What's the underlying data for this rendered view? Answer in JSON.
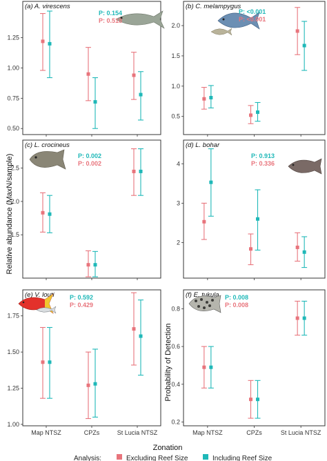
{
  "colors": {
    "excluding": "#E8747C",
    "including": "#1FB8B8"
  },
  "figure": {
    "xlabel": "Zonation",
    "ylabel_left": "Relative abundance (MaxN/sample)",
    "ylabel_right": "Probability of Detection",
    "legend_title": "Analysis:",
    "legend_items": [
      "Excluding Reef Size",
      "Including Reef Size"
    ],
    "categories": [
      "Map NTSZ",
      "CPZs",
      "St Lucia NTSZ"
    ]
  },
  "chart_data": [
    {
      "type": "scatter",
      "panel": "a",
      "title": "(a) A. virescens",
      "p_including": "P: 0.154",
      "p_excluding": "P: 0.518",
      "categories": [
        "Map NTSZ",
        "CPZs",
        "St Lucia NTSZ"
      ],
      "yticks": [
        "0.50",
        "0.75",
        "1.00",
        "1.25"
      ],
      "yticks_num": [
        0.5,
        0.75,
        1.0,
        1.25
      ],
      "ylim": [
        0.45,
        1.55
      ],
      "series": [
        {
          "values": [
            1.22,
            0.95,
            0.94
          ],
          "lower": [
            0.98,
            0.73,
            0.74
          ],
          "upper": [
            1.45,
            1.17,
            1.13
          ]
        },
        {
          "values": [
            1.2,
            0.72,
            0.78
          ],
          "lower": [
            0.92,
            0.5,
            0.57
          ],
          "upper": [
            1.47,
            0.92,
            0.97
          ]
        }
      ]
    },
    {
      "type": "scatter",
      "panel": "b",
      "title": "(b) C. melampygus",
      "p_including": "P: <0.001",
      "p_excluding": "P: <0.001",
      "categories": [
        "Map NTSZ",
        "CPZs",
        "St Lucia NTSZ"
      ],
      "yticks": [
        "0.5",
        "1.0",
        "1.5",
        "2.0"
      ],
      "yticks_num": [
        0.5,
        1.0,
        1.5,
        2.0
      ],
      "ylim": [
        0.2,
        2.4
      ],
      "series": [
        {
          "values": [
            0.79,
            0.52,
            1.91
          ],
          "lower": [
            0.62,
            0.38,
            1.52
          ],
          "upper": [
            0.98,
            0.68,
            2.3
          ]
        },
        {
          "values": [
            0.81,
            0.57,
            1.67
          ],
          "lower": [
            0.64,
            0.42,
            1.26
          ],
          "upper": [
            1.01,
            0.73,
            2.07
          ]
        }
      ]
    },
    {
      "type": "scatter",
      "panel": "c",
      "title": "(c) L. crocineus",
      "p_including": "P: 0.002",
      "p_excluding": "P: 0.002",
      "categories": [
        "Map NTSZ",
        "CPZs",
        "St Lucia NTSZ"
      ],
      "yticks": [
        "1.5",
        "2.0",
        "2.5"
      ],
      "yticks_num": [
        1.5,
        2.0,
        2.5
      ],
      "ylim": [
        0.85,
        2.92
      ],
      "series": [
        {
          "values": [
            1.83,
            1.05,
            2.45
          ],
          "lower": [
            1.54,
            0.87,
            2.09
          ],
          "upper": [
            2.13,
            1.26,
            2.79
          ]
        },
        {
          "values": [
            1.81,
            1.05,
            2.45
          ],
          "lower": [
            1.53,
            0.87,
            2.09
          ],
          "upper": [
            2.09,
            1.25,
            2.79
          ]
        }
      ]
    },
    {
      "type": "scatter",
      "panel": "d",
      "title": "(d) L. bohar",
      "p_including": "P: 0.913",
      "p_excluding": "P: 0.336",
      "categories": [
        "Map NTSZ",
        "CPZs",
        "St Lucia NTSZ"
      ],
      "yticks": [
        "2",
        "3",
        "4"
      ],
      "yticks_num": [
        2,
        3,
        4
      ],
      "ylim": [
        1.1,
        4.6
      ],
      "series": [
        {
          "values": [
            2.53,
            1.84,
            1.88
          ],
          "lower": [
            2.08,
            1.44,
            1.53
          ],
          "upper": [
            3.0,
            2.22,
            2.25
          ]
        },
        {
          "values": [
            3.53,
            2.6,
            1.76
          ],
          "lower": [
            2.67,
            1.81,
            1.37
          ],
          "upper": [
            4.38,
            3.34,
            2.15
          ]
        }
      ]
    },
    {
      "type": "scatter",
      "panel": "e",
      "title": "(e) V. louti",
      "p_including": "P: 0.592",
      "p_excluding": "P: 0.429",
      "categories": [
        "Map NTSZ",
        "CPZs",
        "St Lucia NTSZ"
      ],
      "yticks": [
        "1.00",
        "1.25",
        "1.50",
        "1.75"
      ],
      "yticks_num": [
        1.0,
        1.25,
        1.5,
        1.75
      ],
      "ylim": [
        0.99,
        1.93
      ],
      "series": [
        {
          "values": [
            1.43,
            1.27,
            1.66
          ],
          "lower": [
            1.18,
            1.04,
            1.41
          ],
          "upper": [
            1.67,
            1.5,
            1.91
          ]
        },
        {
          "values": [
            1.43,
            1.28,
            1.61
          ],
          "lower": [
            1.18,
            1.05,
            1.34
          ],
          "upper": [
            1.67,
            1.52,
            1.86
          ]
        }
      ]
    },
    {
      "type": "scatter",
      "panel": "f",
      "title": "(f) E. tukula",
      "p_including": "P: 0.008",
      "p_excluding": "P: 0.008",
      "categories": [
        "Map NTSZ",
        "CPZs",
        "St Lucia NTSZ"
      ],
      "yticks": [
        "0.2",
        "0.4",
        "0.6",
        "0.8"
      ],
      "yticks_num": [
        0.2,
        0.4,
        0.6,
        0.8
      ],
      "ylim": [
        0.18,
        0.9
      ],
      "series": [
        {
          "values": [
            0.49,
            0.32,
            0.75
          ],
          "lower": [
            0.38,
            0.22,
            0.66
          ],
          "upper": [
            0.6,
            0.42,
            0.84
          ]
        },
        {
          "values": [
            0.49,
            0.32,
            0.75
          ],
          "lower": [
            0.38,
            0.22,
            0.66
          ],
          "upper": [
            0.6,
            0.42,
            0.84
          ]
        }
      ]
    }
  ]
}
